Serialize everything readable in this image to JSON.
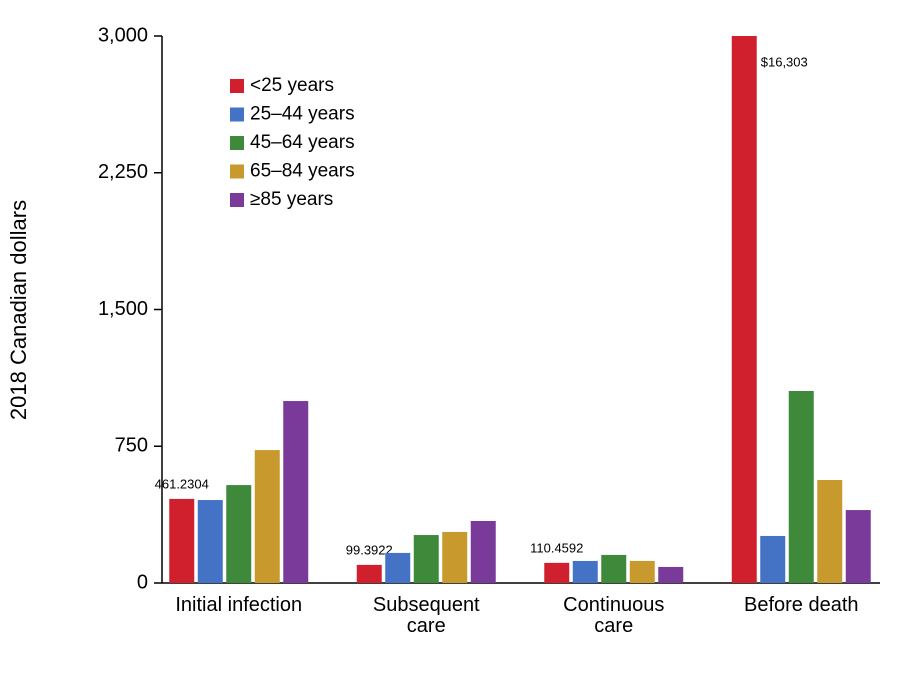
{
  "chart_data": {
    "type": "bar",
    "y_label": "2018 Canadian dollars",
    "categories": [
      "Initial infection",
      "Subsequent care",
      "Continuous care",
      "Before death"
    ],
    "series": [
      {
        "name": "<25 years",
        "color": "#d0202e",
        "values": [
          461.2304,
          99.3922,
          110.4592,
          16303
        ],
        "value_labels": [
          "461.2304",
          "99.3922",
          "110.4592",
          "$16,303"
        ]
      },
      {
        "name": "25–44 years",
        "color": "#4472c4",
        "values": [
          455,
          165,
          121,
          258
        ]
      },
      {
        "name": "45–64 years",
        "color": "#3e8a3a",
        "values": [
          537,
          263,
          154,
          1053
        ]
      },
      {
        "name": "65–84 years",
        "color": "#c89a2e",
        "values": [
          729,
          280,
          121,
          565
        ]
      },
      {
        "name": "≥85 years",
        "color": "#7a3a9a",
        "values": [
          998,
          340,
          88,
          400
        ]
      }
    ],
    "ylim": [
      0,
      3000
    ],
    "yticks": [
      0,
      750,
      {
        "value": 1500,
        "label": "1,500"
      },
      {
        "value": 2250,
        "label": "2,250"
      },
      {
        "value": 3000,
        "label": "3,000"
      }
    ],
    "legend": "upper left"
  }
}
